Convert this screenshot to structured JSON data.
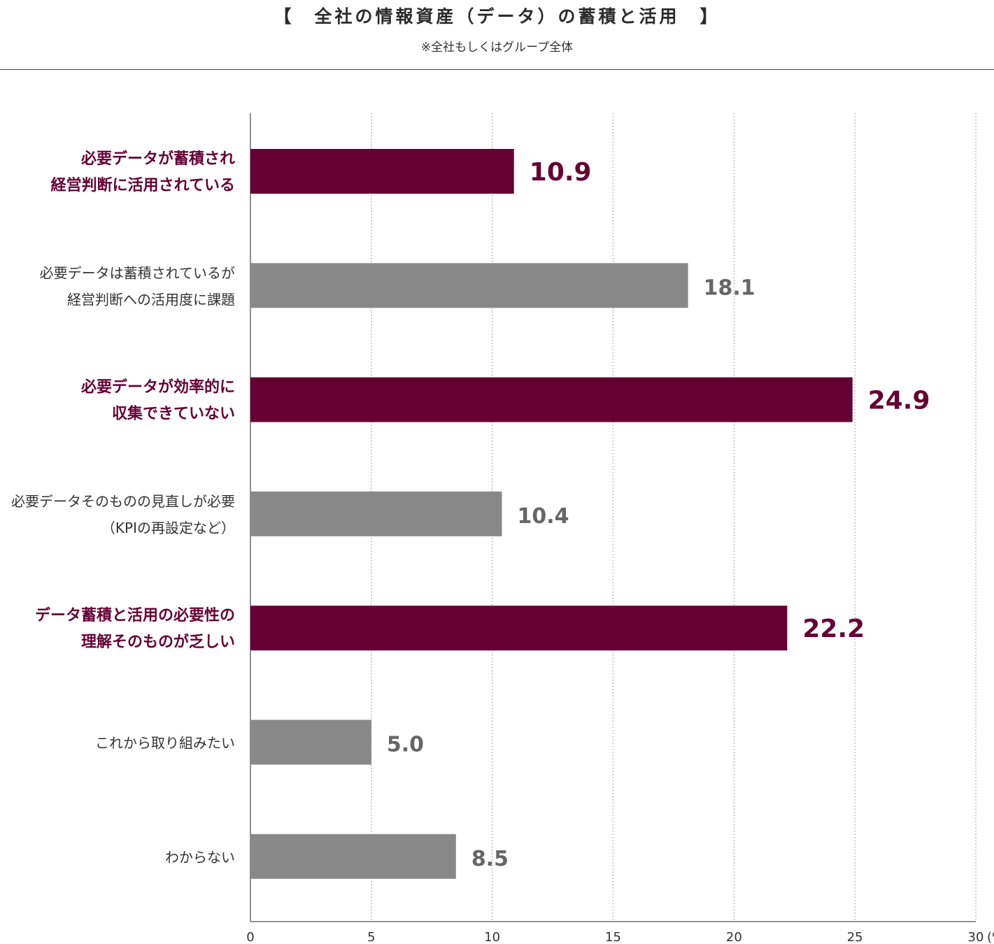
{
  "chart_data": {
    "type": "bar",
    "orientation": "horizontal",
    "title": "【　全社の情報資産（データ）の蓄積と活用　】",
    "subtitle": "※全社もしくはグループ全体",
    "categories": [
      [
        "必要データが蓄積され",
        "経営判断に活用されている"
      ],
      [
        "必要データは蓄積されているが",
        "経営判断への活用度に課題"
      ],
      [
        "必要データが効率的に",
        "収集できていない"
      ],
      [
        "必要データそのものの見直しが必要",
        "（KPIの再設定など）"
      ],
      [
        "データ蓄積と活用の必要性の",
        "理解そのものが乏しい"
      ],
      [
        "これから取り組みたい"
      ],
      [
        "わからない"
      ]
    ],
    "values": [
      10.9,
      18.1,
      24.9,
      10.4,
      22.2,
      5.0,
      8.5
    ],
    "value_labels": [
      "10.9",
      "18.1",
      "24.9",
      "10.4",
      "22.2",
      "5.0",
      "8.5"
    ],
    "highlighted": [
      true,
      false,
      true,
      false,
      true,
      false,
      false
    ],
    "x_ticks": [
      "0",
      "5",
      "10",
      "15",
      "20",
      "25",
      "30"
    ],
    "x_unit": "(%)",
    "xlim": [
      0,
      30
    ],
    "grid": "vertical-dotted",
    "colors": {
      "highlight": "#660033",
      "normal": "#888888",
      "highlight_text": "#660033",
      "normal_text": "#666666",
      "axis": "#555555",
      "grid": "#999999"
    }
  }
}
